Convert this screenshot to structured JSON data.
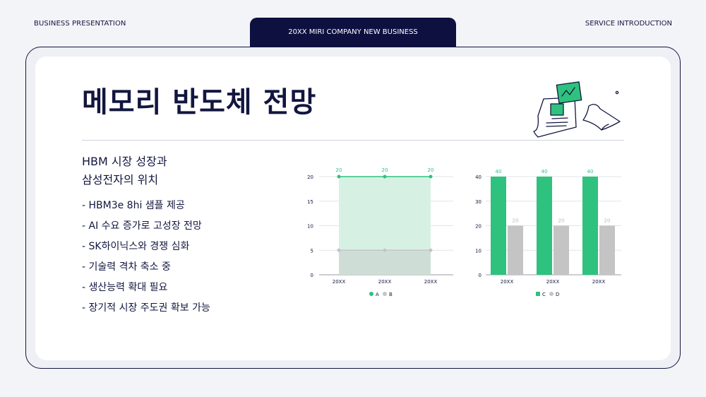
{
  "header": {
    "left": "BUSINESS PRESENTATION",
    "tab": "20XX MIRI COMPANY NEW  BUSINESS",
    "right": "SERVICE INTRODUCTION"
  },
  "slide": {
    "title": "메모리 반도체 전망",
    "subtitle_line1": "HBM 시장 성장과",
    "subtitle_line2": "삼성전자의 위치",
    "bullets": [
      "- HBM3e 8hi 샘플 제공",
      "- AI 수요 증가로 고성장 전망",
      "- SK하이닉스와 경쟁 심화",
      "- 기술력 격차 축소 중",
      "- 생산능력 확대 필요",
      "- 장기적 시장 주도권 확보 가능"
    ]
  },
  "colors": {
    "navy": "#12163f",
    "green": "#2ec27e",
    "green_light": "#d6f1e4",
    "gray": "#c4c4c4"
  },
  "chart_data": [
    {
      "type": "area",
      "categories": [
        "20XX",
        "20XX",
        "20XX"
      ],
      "series": [
        {
          "name": "A",
          "values": [
            20,
            20,
            20
          ],
          "color": "#2ec27e"
        },
        {
          "name": "B",
          "values": [
            5,
            5,
            5
          ],
          "color": "#c4c4c4"
        }
      ],
      "ylim": [
        0,
        20
      ],
      "yticks": [
        0,
        5,
        10,
        15,
        20
      ],
      "data_labels": [
        "20",
        "20",
        "20"
      ],
      "grid": true,
      "legend": "bottom-center"
    },
    {
      "type": "bar",
      "categories": [
        "20XX",
        "20XX",
        "20XX"
      ],
      "series": [
        {
          "name": "C",
          "values": [
            40,
            40,
            40
          ],
          "color": "#2ec27e"
        },
        {
          "name": "D",
          "values": [
            20,
            20,
            20
          ],
          "color": "#c4c4c4"
        }
      ],
      "ylim": [
        0,
        40
      ],
      "yticks": [
        0,
        10,
        20,
        30,
        40
      ],
      "grid": true,
      "legend": "bottom-center"
    }
  ]
}
